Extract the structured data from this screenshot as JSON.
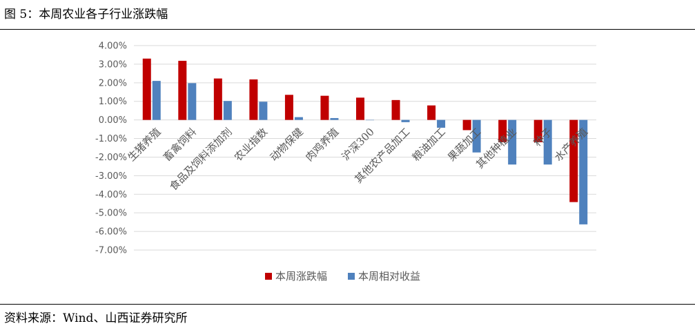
{
  "figure": {
    "title": "图 5：本周农业各子行业涨跌幅",
    "source": "资料来源：Wind、山西证券研究所"
  },
  "chart_data": {
    "type": "bar",
    "categories": [
      "生猪养殖",
      "畜禽饲料",
      "食品及饲料添加剂",
      "农业指数",
      "动物保健",
      "肉鸡养殖",
      "沪深300",
      "其他农产品加工",
      "粮油加工",
      "果蔬加工",
      "其他种植业",
      "种子",
      "水产养殖"
    ],
    "series": [
      {
        "name": "本周涨跌幅",
        "color": "#C00000",
        "values": [
          3.3,
          3.18,
          2.23,
          2.18,
          1.35,
          1.3,
          1.2,
          1.07,
          0.78,
          -0.55,
          -1.2,
          -1.2,
          -4.42
        ]
      },
      {
        "name": "本周相对收益",
        "color": "#4F81BD",
        "values": [
          2.1,
          1.98,
          1.02,
          0.98,
          0.15,
          0.1,
          0.0,
          -0.12,
          -0.42,
          -1.75,
          -2.4,
          -2.4,
          -5.62
        ]
      }
    ],
    "ylim": [
      -7,
      4
    ],
    "yticks": [
      "4.00%",
      "3.00%",
      "2.00%",
      "1.00%",
      "0.00%",
      "-1.00%",
      "-2.00%",
      "-3.00%",
      "-4.00%",
      "-5.00%",
      "-6.00%",
      "-7.00%"
    ],
    "grid": true,
    "legend_position": "bottom"
  }
}
